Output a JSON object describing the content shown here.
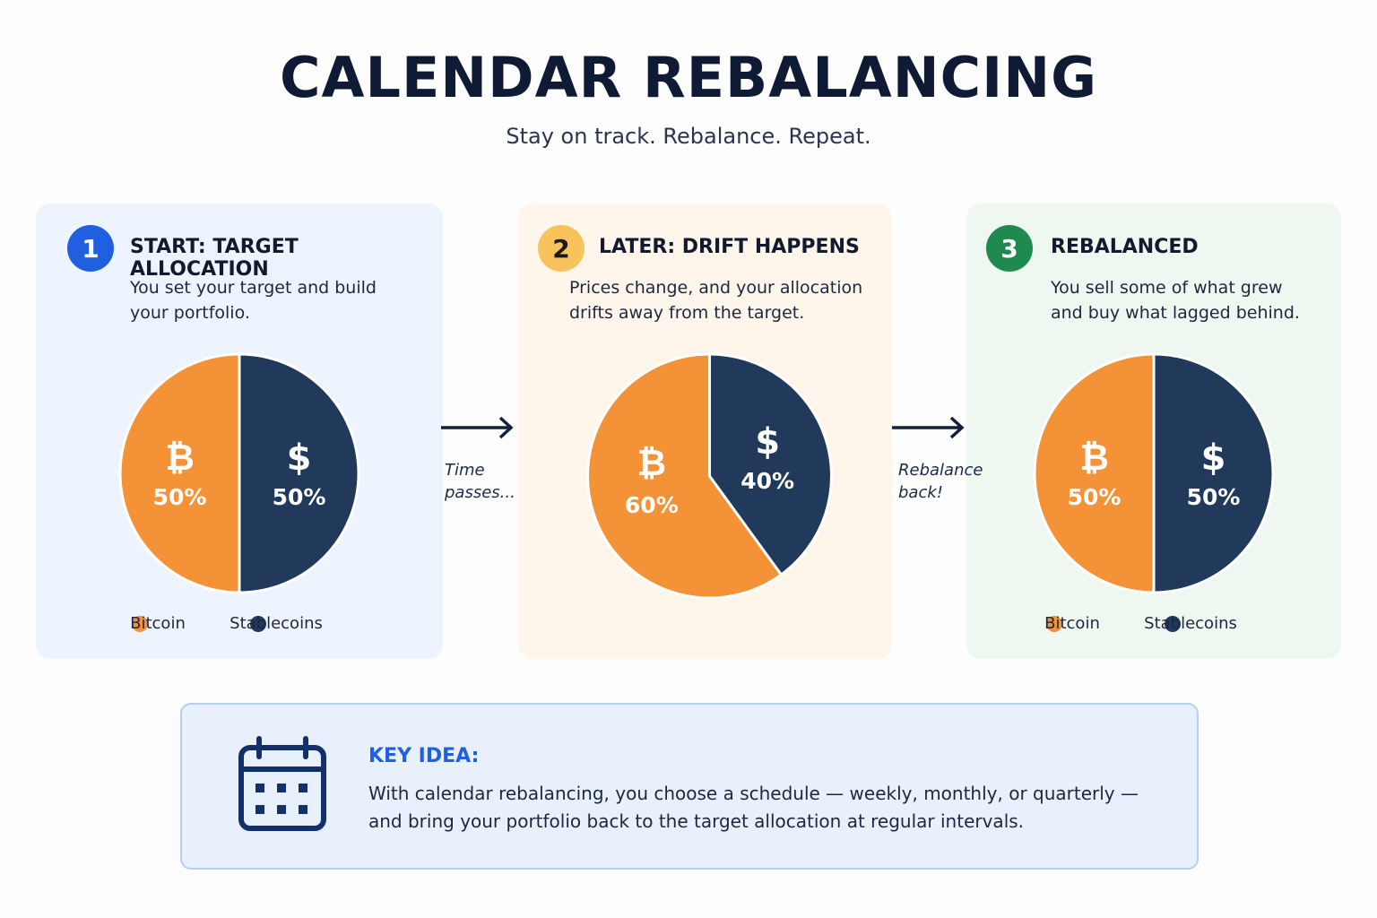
{
  "header": {
    "title": "CALENDAR REBALANCING",
    "subtitle": "Stay on track. Rebalance. Repeat."
  },
  "chart_data": [
    {
      "type": "pie",
      "step": "1",
      "badge_color": "#1f5fe0",
      "title": "START: TARGET ALLOCATION",
      "description": "You set your target and build your portfolio.",
      "categories": [
        "Bitcoin",
        "Stablecoins"
      ],
      "values": [
        50,
        50
      ],
      "value_labels": [
        "50%",
        "50%"
      ],
      "symbols": [
        "₿",
        "$"
      ],
      "colors": [
        "#f39237",
        "#213a5c"
      ],
      "legend": true
    },
    {
      "type": "pie",
      "step": "2",
      "badge_color": "#f8c35c",
      "title": "LATER: DRIFT HAPPENS",
      "description": "Prices change, and your allocation drifts away from the target.",
      "values": [
        60,
        40
      ],
      "value_labels": [
        "60%",
        "40%"
      ],
      "symbols": [
        "₿",
        "$"
      ],
      "colors": [
        "#f39237",
        "#213a5c"
      ],
      "legend": false
    },
    {
      "type": "pie",
      "step": "3",
      "badge_color": "#1e8a4f",
      "title": "REBALANCED",
      "description": "You sell some of what grew and buy what lagged behind.",
      "categories": [
        "Bitcoin",
        "Stablecoins"
      ],
      "values": [
        50,
        50
      ],
      "value_labels": [
        "50%",
        "50%"
      ],
      "symbols": [
        "₿",
        "$"
      ],
      "colors": [
        "#f39237",
        "#213a5c"
      ],
      "legend": true
    }
  ],
  "transitions": [
    "Time passes...",
    "Rebalance back!"
  ],
  "key_idea": {
    "title": "KEY IDEA:",
    "text": "With calendar rebalancing, you choose a schedule — weekly, monthly, or quarterly — and bring your portfolio back to the target allocation at regular intervals."
  }
}
